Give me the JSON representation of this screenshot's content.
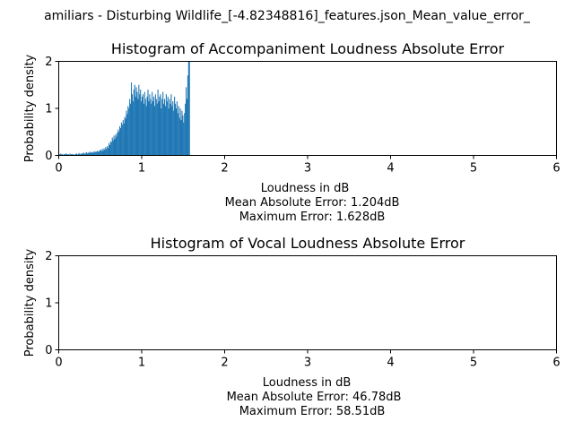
{
  "figure": {
    "suptitle": "amiliars - Disturbing Wildlife_[-4.82348816]_features.json_Mean_value_error_"
  },
  "chart_data": [
    {
      "type": "bar",
      "title": "Histogram of Accompaniment Loudness Absolute Error",
      "xlabel": "Loudness in dB",
      "ylabel": "Probability density",
      "xlim": [
        0,
        6
      ],
      "ylim": [
        0,
        2
      ],
      "xticks": [
        "0",
        "1",
        "2",
        "3",
        "4",
        "5",
        "6"
      ],
      "yticks": [
        "0",
        "1",
        "2"
      ],
      "grid": false,
      "bar_color": "#1f77b4",
      "bins": {
        "start": 0.0,
        "width": 0.01,
        "density": [
          0.03,
          0.02,
          0.04,
          0.02,
          0.03,
          0.01,
          0.03,
          0.02,
          0.04,
          0.03,
          0.02,
          0.03,
          0.01,
          0.04,
          0.02,
          0.03,
          0.02,
          0.03,
          0.01,
          0.02,
          0.03,
          0.04,
          0.02,
          0.03,
          0.05,
          0.02,
          0.04,
          0.03,
          0.05,
          0.04,
          0.06,
          0.03,
          0.05,
          0.07,
          0.04,
          0.06,
          0.05,
          0.08,
          0.06,
          0.07,
          0.05,
          0.08,
          0.06,
          0.09,
          0.07,
          0.08,
          0.1,
          0.07,
          0.09,
          0.11,
          0.12,
          0.09,
          0.14,
          0.1,
          0.15,
          0.12,
          0.18,
          0.14,
          0.2,
          0.16,
          0.26,
          0.22,
          0.3,
          0.28,
          0.38,
          0.32,
          0.42,
          0.35,
          0.45,
          0.4,
          0.48,
          0.55,
          0.5,
          0.62,
          0.58,
          0.7,
          0.65,
          0.75,
          0.68,
          0.82,
          0.78,
          0.95,
          0.88,
          1.05,
          1.0,
          1.2,
          1.1,
          1.55,
          1.3,
          1.15,
          1.4,
          1.5,
          1.25,
          1.45,
          1.35,
          1.2,
          1.5,
          1.3,
          1.4,
          1.15,
          1.25,
          1.3,
          1.1,
          1.35,
          1.2,
          1.05,
          1.25,
          1.4,
          1.15,
          1.3,
          1.2,
          1.1,
          1.35,
          1.15,
          1.25,
          1.05,
          1.3,
          1.2,
          1.1,
          1.4,
          1.15,
          1.25,
          1.3,
          1.0,
          1.2,
          1.35,
          1.1,
          1.2,
          1.05,
          1.3,
          1.15,
          1.25,
          1.0,
          1.2,
          1.1,
          1.3,
          1.05,
          1.15,
          0.95,
          1.25,
          1.1,
          1.0,
          1.15,
          0.9,
          1.05,
          0.8,
          1.0,
          0.75,
          0.95,
          0.85,
          0.7,
          0.9,
          1.1,
          1.45,
          1.2,
          1.7,
          2.0,
          2.0
        ]
      },
      "annotations": [
        "Mean Absolute Error: 1.204dB",
        "Maximum Error: 1.628dB"
      ]
    },
    {
      "type": "bar",
      "title": "Histogram of Vocal Loudness Absolute Error",
      "xlabel": "Loudness in dB",
      "ylabel": "Probability density",
      "xlim": [
        0,
        6
      ],
      "ylim": [
        0,
        2
      ],
      "xticks": [
        "0",
        "1",
        "2",
        "3",
        "4",
        "5",
        "6"
      ],
      "yticks": [
        "0",
        "1",
        "2"
      ],
      "grid": false,
      "bar_color": "#1f77b4",
      "bins": {
        "start": 0.0,
        "width": 0.01,
        "density": []
      },
      "annotations": [
        "Mean Absolute Error: 46.78dB",
        "Maximum Error: 58.51dB"
      ]
    }
  ]
}
